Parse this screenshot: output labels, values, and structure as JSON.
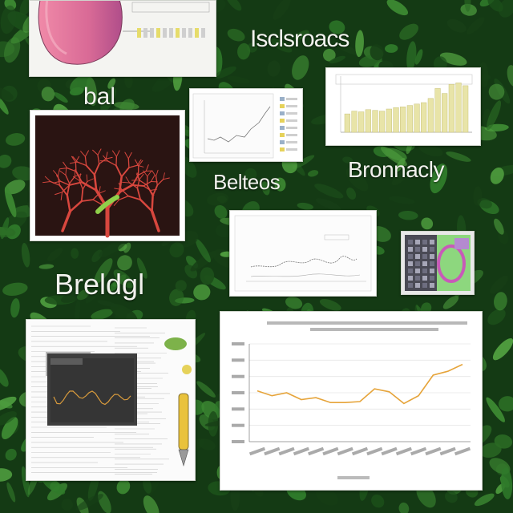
{
  "labels": {
    "top_right": "Isclsroacs",
    "top_left": "bal",
    "middle_right": "Bronnacly",
    "middle": "Belteos",
    "lower_left": "Breldgl"
  },
  "cards": {
    "organ_diagram": {
      "icon": "organ-illustration"
    },
    "leaf_micrograph": {
      "icon": "red-vein-network"
    },
    "small_line_chart": {
      "icon": "line-chart"
    },
    "bar_chart_card": {
      "icon": "bar-chart"
    },
    "wave_chart_card": {
      "icon": "trace-chart"
    },
    "thumbnail_photo": {
      "icon": "colorful-thumbnail"
    },
    "document_collage": {
      "icon": "document-collage"
    },
    "trend_chart": {
      "icon": "line-chart"
    }
  },
  "chart_data": [
    {
      "type": "line",
      "title": "",
      "values": [
        52,
        47,
        50,
        43,
        45,
        40,
        40,
        41,
        54,
        51,
        39,
        47,
        68,
        72,
        79
      ],
      "ylim": [
        0,
        100
      ],
      "color": "#e6a43a"
    },
    {
      "type": "bar",
      "title": "",
      "values": [
        26,
        30,
        29,
        32,
        31,
        30,
        33,
        35,
        36,
        38,
        40,
        42,
        48,
        62,
        55,
        68,
        70,
        66
      ],
      "ylim": [
        0,
        75
      ],
      "color": "#e8e4a8"
    }
  ],
  "colors": {
    "foliage_dark": "#0e2a10",
    "foliage_light": "#3f8a34",
    "orange_line": "#e6a43a",
    "card_bg": "#f4f4f1"
  }
}
